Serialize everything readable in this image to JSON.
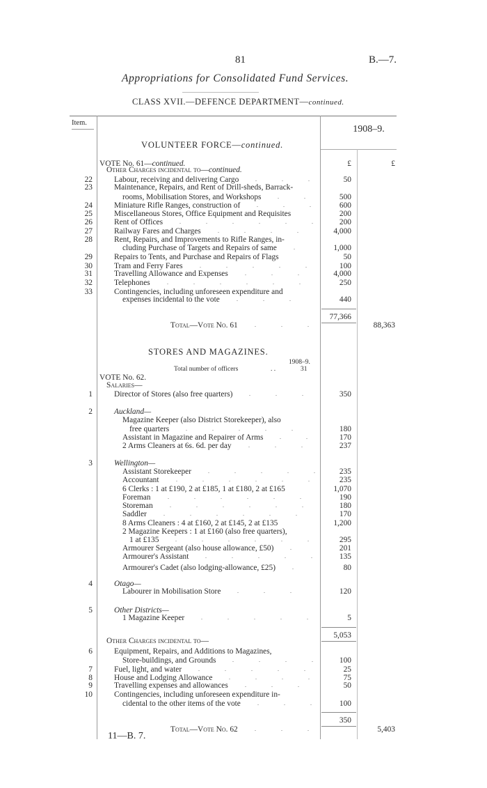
{
  "page": {
    "number": "81",
    "reference": "B.—7."
  },
  "title": "Appropriations for Consolidated Fund Services.",
  "class_heading": {
    "text": "CLASS XVII.—DEFENCE DEPARTMENT—",
    "continued": "continued."
  },
  "table_header": {
    "item": "Item.",
    "year": "1908–9."
  },
  "section1": {
    "heading": "VOLUNTEER FORCE—",
    "continued": "continued."
  },
  "section2": {
    "heading": "STORES AND MAGAZINES.",
    "officers_year": "1908–9.",
    "officers_label": "Total number of officers",
    "officers_count": "31"
  },
  "rows": [
    {
      "kind": "vote",
      "text": "VOTE No. 61—",
      "italic_suffix": "continued.",
      "amount": "£",
      "amount2": "£"
    },
    {
      "kind": "heading",
      "text": "Other Charges incidental to—",
      "italic_suffix": "continued."
    },
    {
      "item": "22",
      "kind": "entry",
      "text": "Labour, receiving and delivering Cargo",
      "leader": true,
      "amount": "50"
    },
    {
      "item": "23",
      "kind": "entry",
      "text": "Maintenance, Repairs, and Rent of Drill-sheds, Barrack-"
    },
    {
      "kind": "cont",
      "text": "rooms, Mobilisation Stores, and Workshops",
      "leader": true,
      "amount": "500"
    },
    {
      "item": "24",
      "kind": "entry",
      "text": "Miniature Rifle Ranges, construction of",
      "leader": true,
      "amount": "600"
    },
    {
      "item": "25",
      "kind": "entry",
      "text": "Miscellaneous Stores, Office Equipment and Requisites",
      "amount": "200"
    },
    {
      "item": "26",
      "kind": "entry",
      "text": "Rent of Offices",
      "leader": true,
      "amount": "200"
    },
    {
      "item": "27",
      "kind": "entry",
      "text": "Railway Fares and Charges",
      "leader": true,
      "amount": "4,000"
    },
    {
      "item": "28",
      "kind": "entry",
      "text": "Rent, Repairs, and Improvements to Rifle Ranges, in-"
    },
    {
      "kind": "cont",
      "text": "cluding Purchase of Targets and Repairs of same",
      "leader": true,
      "amount": "1,000"
    },
    {
      "item": "29",
      "kind": "entry",
      "text": "Repairs to Tents, and Purchase and Repairs of Flags",
      "amount": "50"
    },
    {
      "item": "30",
      "kind": "entry",
      "text": "Tram and Ferry Fares",
      "leader": true,
      "amount": "100"
    },
    {
      "item": "31",
      "kind": "entry",
      "text": "Travelling Allowance and Expenses",
      "leader": true,
      "amount": "4,000"
    },
    {
      "item": "32",
      "kind": "entry",
      "text": "Telephones",
      "leader": true,
      "amount": "250"
    },
    {
      "item": "33",
      "kind": "entry",
      "text": "Contingencies, including unforeseen expenditure and"
    },
    {
      "kind": "cont",
      "text": "expenses incidental to the vote",
      "leader": true,
      "amount": "440"
    },
    {
      "kind": "subtotal",
      "amount": "77,366"
    },
    {
      "kind": "total",
      "text": "Total—Vote No. 61",
      "leader": true,
      "amount2": "88,363"
    },
    {
      "kind": "vote",
      "text": "VOTE No. 62."
    },
    {
      "kind": "heading",
      "text": "Salaries—"
    },
    {
      "item": "1",
      "kind": "entry",
      "text": "Director of Stores (also free quarters)",
      "leader": true,
      "amount": "350"
    },
    {
      "item": "2",
      "kind": "district",
      "text": "Auckland—"
    },
    {
      "kind": "cont",
      "text": "Magazine Keeper (also District Storekeeper), also"
    },
    {
      "kind": "cont2",
      "text": "free quarters",
      "leader": true,
      "amount": "180"
    },
    {
      "kind": "cont",
      "text": "Assistant in Magazine and Repairer of Arms",
      "leader": true,
      "amount": "170"
    },
    {
      "kind": "cont",
      "text": "2 Arms Cleaners at 6s. 6d. per day",
      "leader": true,
      "amount": "237"
    },
    {
      "item": "3",
      "kind": "district",
      "text": "Wellington—"
    },
    {
      "kind": "cont",
      "text": "Assistant Storekeeper",
      "leader": true,
      "amount": "235"
    },
    {
      "kind": "cont",
      "text": "Accountant",
      "leader": true,
      "amount": "235"
    },
    {
      "kind": "cont",
      "text": "6 Clerks : 1 at £190, 2 at £185, 1 at £180, 2 at £165",
      "amount": "1,070"
    },
    {
      "kind": "cont",
      "text": "Foreman",
      "leader": true,
      "amount": "190"
    },
    {
      "kind": "cont",
      "text": "Storeman",
      "leader": true,
      "amount": "180"
    },
    {
      "kind": "cont",
      "text": "Saddler",
      "leader": true,
      "amount": "170"
    },
    {
      "kind": "cont",
      "text": "8 Arms Cleaners : 4 at £160, 2 at £145, 2 at £135",
      "amount": "1,200"
    },
    {
      "kind": "cont",
      "text": "2 Magazine Keepers : 1 at £160 (also free quarters),"
    },
    {
      "kind": "cont2",
      "text": "1 at £135",
      "leader": true,
      "amount": "295"
    },
    {
      "kind": "cont",
      "text": "Armourer Sergeant (also house allowance, £50)",
      "leader": true,
      "amount": "201"
    },
    {
      "kind": "cont",
      "text": "Armourer's Assistant",
      "leader": true,
      "amount": "135"
    },
    {
      "kind": "cont",
      "text": "Armourer's Cadet (also lodging-allowance, £25)",
      "leader": true,
      "amount": "80"
    },
    {
      "item": "4",
      "kind": "district",
      "text": "Otago—"
    },
    {
      "kind": "cont",
      "text": "Labourer in Mobilisation Store",
      "leader": true,
      "amount": "120"
    },
    {
      "item": "5",
      "kind": "district",
      "text": "Other Districts—"
    },
    {
      "kind": "cont",
      "text": "1 Magazine Keeper",
      "leader": true,
      "amount": "5"
    },
    {
      "kind": "subtotal",
      "amount": "5,053"
    },
    {
      "kind": "heading",
      "text": "Other Charges incidental to—"
    },
    {
      "item": "6",
      "kind": "entry",
      "text": "Equipment, Repairs, and Additions to Magazines,"
    },
    {
      "kind": "cont",
      "text": "Store-buildings, and Grounds",
      "leader": true,
      "amount": "100"
    },
    {
      "item": "7",
      "kind": "entry",
      "text": "Fuel, light, and water",
      "leader": true,
      "amount": "25"
    },
    {
      "item": "8",
      "kind": "entry",
      "text": "House and Lodging Allowance",
      "leader": true,
      "amount": "75"
    },
    {
      "item": "9",
      "kind": "entry",
      "text": "Travelling expenses and allowances",
      "leader": true,
      "amount": "50"
    },
    {
      "item": "10",
      "kind": "entry",
      "text": "Contingencies, including unforeseen expenditure in-"
    },
    {
      "kind": "cont",
      "text": "cidental to the other items of the vote",
      "leader": true,
      "amount": "100"
    },
    {
      "kind": "subtotal",
      "amount": "350"
    },
    {
      "kind": "total",
      "text": "Total—Vote No. 62",
      "leader": true,
      "amount2": "5,403"
    }
  ],
  "footer": {
    "signature": "11—B. 7."
  }
}
